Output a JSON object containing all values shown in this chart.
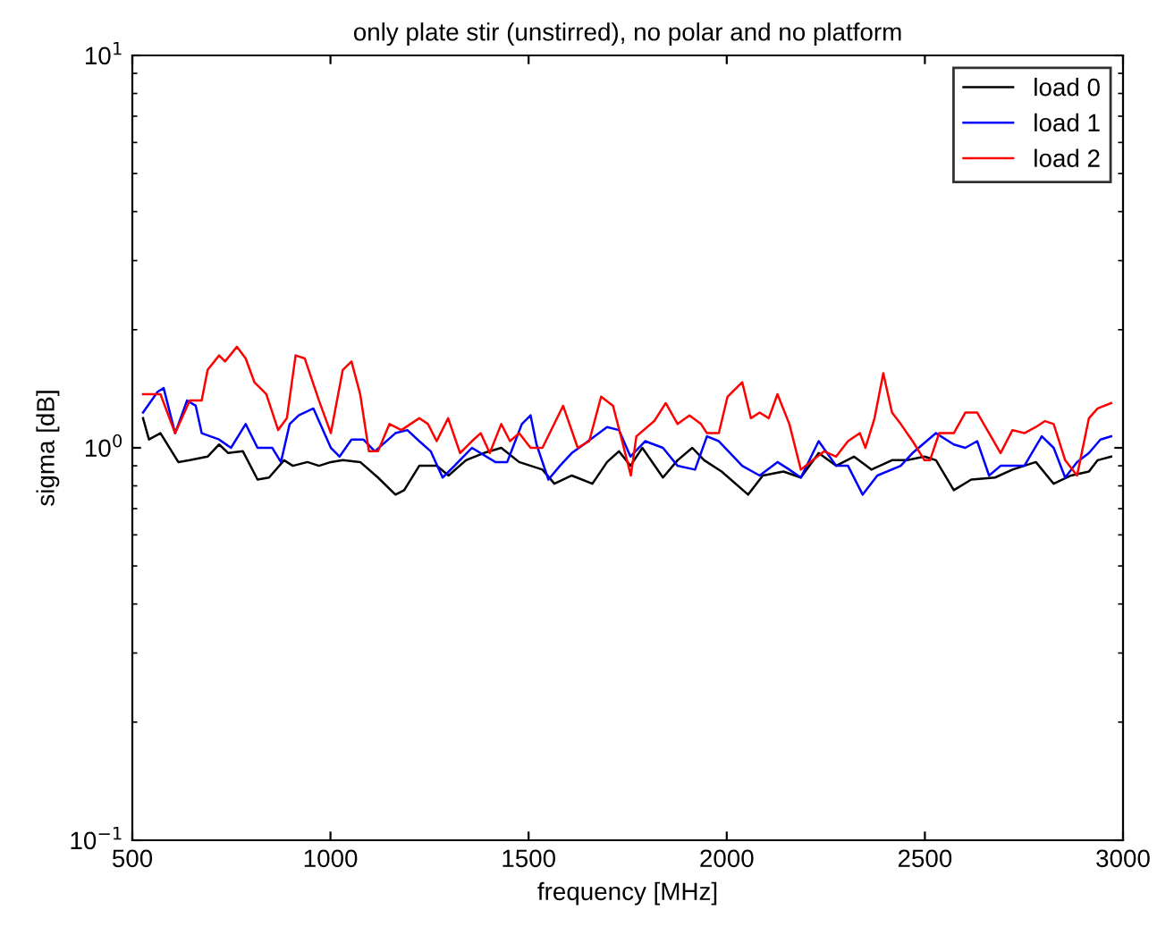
{
  "chart_data": {
    "type": "line",
    "title": "only plate stir (unstirred), no polar and no platform",
    "xlabel": "frequency [MHz]",
    "ylabel": "sigma [dB]",
    "log": "y",
    "xlim": [
      500,
      3000
    ],
    "xticks": [
      500,
      1000,
      1500,
      2000,
      2500,
      3000
    ],
    "ylim": [
      0.1,
      10
    ],
    "yticks": [
      {
        "value": 0.1,
        "label": "10$^{−1}$"
      },
      {
        "value": 1,
        "label": "10$^{0}$"
      },
      {
        "value": 10,
        "label": "10$^{1}$"
      }
    ],
    "grid": false,
    "legend": "top right",
    "marker": "none",
    "line_style": "solid",
    "series": [
      {
        "name": "load 0",
        "color": "#000000",
        "x": [
          527,
          542,
          571,
          616,
          645,
          690,
          719,
          742,
          779,
          816,
          845,
          883,
          905,
          942,
          971,
          1001,
          1031,
          1075,
          1120,
          1164,
          1186,
          1224,
          1268,
          1298,
          1342,
          1387,
          1431,
          1476,
          1535,
          1565,
          1609,
          1661,
          1698,
          1728,
          1757,
          1787,
          1839,
          1876,
          1913,
          1943,
          1987,
          2054,
          2091,
          2143,
          2187,
          2232,
          2276,
          2321,
          2365,
          2417,
          2454,
          2499,
          2528,
          2573,
          2617,
          2677,
          2721,
          2780,
          2825,
          2869,
          2914,
          2936,
          2970
        ],
        "values": [
          1.19,
          1.05,
          1.09,
          0.92,
          0.93,
          0.95,
          1.02,
          0.97,
          0.98,
          0.83,
          0.84,
          0.93,
          0.9,
          0.92,
          0.9,
          0.92,
          0.93,
          0.92,
          0.84,
          0.76,
          0.78,
          0.9,
          0.9,
          0.85,
          0.93,
          0.97,
          1.0,
          0.92,
          0.88,
          0.81,
          0.85,
          0.81,
          0.92,
          0.98,
          0.9,
          1.0,
          0.84,
          0.93,
          1.0,
          0.93,
          0.87,
          0.76,
          0.85,
          0.87,
          0.84,
          0.97,
          0.9,
          0.95,
          0.88,
          0.93,
          0.93,
          0.95,
          0.93,
          0.78,
          0.83,
          0.84,
          0.88,
          0.92,
          0.81,
          0.85,
          0.87,
          0.93,
          0.95
        ]
      },
      {
        "name": "load 1",
        "color": "#0000ff",
        "x": [
          527,
          564,
          579,
          608,
          638,
          660,
          675,
          719,
          749,
          786,
          816,
          853,
          875,
          897,
          920,
          957,
          971,
          1001,
          1023,
          1053,
          1083,
          1112,
          1164,
          1194,
          1224,
          1253,
          1283,
          1313,
          1357,
          1416,
          1446,
          1483,
          1505,
          1520,
          1550,
          1579,
          1609,
          1639,
          1698,
          1728,
          1757,
          1794,
          1839,
          1876,
          1920,
          1950,
          1980,
          2039,
          2083,
          2128,
          2158,
          2187,
          2232,
          2276,
          2306,
          2343,
          2380,
          2439,
          2469,
          2528,
          2573,
          2602,
          2632,
          2662,
          2691,
          2751,
          2795,
          2825,
          2854,
          2884,
          2914,
          2943,
          2970
        ],
        "values": [
          1.23,
          1.39,
          1.42,
          1.09,
          1.32,
          1.28,
          1.09,
          1.05,
          1.0,
          1.15,
          1.0,
          1.0,
          0.92,
          1.15,
          1.21,
          1.26,
          1.17,
          1.0,
          0.95,
          1.05,
          1.05,
          0.98,
          1.09,
          1.11,
          1.04,
          0.98,
          0.84,
          0.9,
          1.0,
          0.92,
          0.92,
          1.15,
          1.21,
          1.02,
          0.83,
          0.9,
          0.97,
          1.02,
          1.13,
          1.11,
          0.95,
          1.04,
          1.0,
          0.9,
          0.88,
          1.07,
          1.04,
          0.9,
          0.85,
          0.92,
          0.88,
          0.84,
          1.04,
          0.9,
          0.9,
          0.76,
          0.85,
          0.9,
          0.97,
          1.09,
          1.02,
          1.0,
          1.04,
          0.85,
          0.9,
          0.9,
          1.07,
          1.0,
          0.84,
          0.92,
          0.97,
          1.05,
          1.07
        ]
      },
      {
        "name": "load 2",
        "color": "#ff0000",
        "x": [
          527,
          571,
          608,
          645,
          675,
          690,
          719,
          734,
          764,
          786,
          808,
          838,
          868,
          890,
          912,
          935,
          971,
          1001,
          1031,
          1053,
          1075,
          1097,
          1120,
          1149,
          1179,
          1224,
          1246,
          1268,
          1297,
          1327,
          1357,
          1379,
          1402,
          1431,
          1453,
          1476,
          1505,
          1535,
          1587,
          1624,
          1653,
          1683,
          1713,
          1735,
          1758,
          1772,
          1817,
          1846,
          1876,
          1906,
          1935,
          1950,
          1980,
          2002,
          2039,
          2061,
          2083,
          2106,
          2128,
          2158,
          2187,
          2217,
          2246,
          2276,
          2306,
          2336,
          2350,
          2373,
          2395,
          2417,
          2439,
          2469,
          2499,
          2513,
          2536,
          2573,
          2602,
          2632,
          2662,
          2691,
          2721,
          2751,
          2780,
          2803,
          2825,
          2854,
          2884,
          2914,
          2936,
          2970
        ],
        "values": [
          1.37,
          1.37,
          1.09,
          1.32,
          1.32,
          1.58,
          1.72,
          1.66,
          1.81,
          1.69,
          1.47,
          1.37,
          1.11,
          1.19,
          1.72,
          1.69,
          1.32,
          1.09,
          1.58,
          1.66,
          1.37,
          0.98,
          0.98,
          1.15,
          1.11,
          1.19,
          1.15,
          1.04,
          1.19,
          0.97,
          1.04,
          1.09,
          0.97,
          1.15,
          1.04,
          1.09,
          1.0,
          1.0,
          1.28,
          1.0,
          1.04,
          1.35,
          1.28,
          1.05,
          0.85,
          1.07,
          1.17,
          1.3,
          1.15,
          1.21,
          1.15,
          1.09,
          1.09,
          1.35,
          1.47,
          1.19,
          1.23,
          1.19,
          1.37,
          1.15,
          0.88,
          0.93,
          0.98,
          0.95,
          1.04,
          1.09,
          1.0,
          1.19,
          1.55,
          1.23,
          1.15,
          1.04,
          0.93,
          0.93,
          1.09,
          1.09,
          1.23,
          1.23,
          1.09,
          0.97,
          1.11,
          1.09,
          1.13,
          1.17,
          1.15,
          0.93,
          0.85,
          1.19,
          1.26,
          1.3
        ]
      }
    ]
  }
}
